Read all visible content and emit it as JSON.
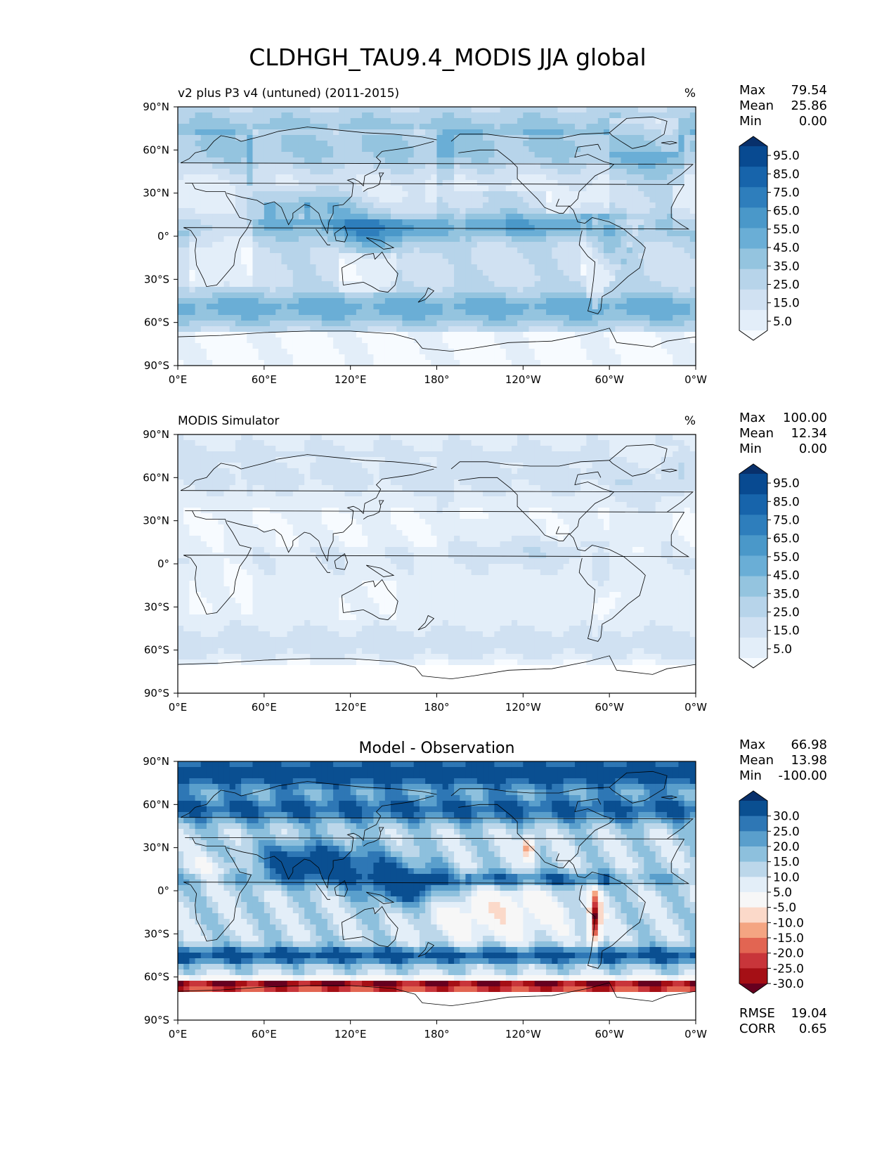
{
  "title": "CLDHGH_TAU9.4_MODIS JJA global",
  "axes": {
    "lat_ticks": [
      "90°N",
      "60°N",
      "30°N",
      "0°",
      "30°S",
      "60°S",
      "90°S"
    ],
    "lon_ticks": [
      "0°E",
      "60°E",
      "120°E",
      "180°",
      "120°W",
      "60°W",
      "0°W"
    ]
  },
  "colors": {
    "seq_levels": [
      "#f7fbff",
      "#e3eef9",
      "#d0e1f2",
      "#b7d4ea",
      "#94c4df",
      "#6aaed6",
      "#4a98c9",
      "#2e7ebc",
      "#1764ab",
      "#084a91",
      "#08306b"
    ],
    "diff_levels": [
      "#67001f",
      "#a50f15",
      "#c8353a",
      "#e26552",
      "#f4a582",
      "#fbd9c9",
      "#f7f7f7",
      "#e3eef8",
      "#bcd7ea",
      "#8dc0dd",
      "#5a9fcc",
      "#2e77b5",
      "#0a4f91",
      "#08306b"
    ],
    "coastline": "#000000"
  },
  "panels": [
    {
      "id": "test",
      "title_left": "v2 plus P3 v4 (untuned) (2011-2015)",
      "title_center": "",
      "units": "%",
      "stats": [
        {
          "label": "Max",
          "value": "79.54"
        },
        {
          "label": "Mean",
          "value": "25.86"
        },
        {
          "label": "Min",
          "value": "0.00"
        }
      ],
      "colorbar_labels": [
        "95.0",
        "85.0",
        "75.0",
        "65.0",
        "55.0",
        "45.0",
        "35.0",
        "25.0",
        "15.0",
        "5.0"
      ],
      "colorbar_type": "seq",
      "field": "test",
      "footer_stats": []
    },
    {
      "id": "ref",
      "title_left": "MODIS Simulator",
      "title_center": "",
      "units": "%",
      "stats": [
        {
          "label": "Max",
          "value": "100.00"
        },
        {
          "label": "Mean",
          "value": "12.34"
        },
        {
          "label": "Min",
          "value": "0.00"
        }
      ],
      "colorbar_labels": [
        "95.0",
        "85.0",
        "75.0",
        "65.0",
        "55.0",
        "45.0",
        "35.0",
        "25.0",
        "15.0",
        "5.0"
      ],
      "colorbar_type": "seq",
      "field": "ref",
      "footer_stats": []
    },
    {
      "id": "diff",
      "title_left": "",
      "title_center": "Model - Observation",
      "units": "",
      "stats": [
        {
          "label": "Max",
          "value": "66.98"
        },
        {
          "label": "Mean",
          "value": "13.98"
        },
        {
          "label": "Min",
          "value": "-100.00"
        }
      ],
      "colorbar_labels": [
        "30.0",
        "25.0",
        "20.0",
        "15.0",
        "10.0",
        "5.0",
        "-5.0",
        "-10.0",
        "-15.0",
        "-20.0",
        "-25.0",
        "-30.0"
      ],
      "colorbar_type": "diff",
      "field": "diff",
      "footer_stats": [
        {
          "label": "RMSE",
          "value": "19.04"
        },
        {
          "label": "CORR",
          "value": "0.65"
        }
      ]
    }
  ]
}
